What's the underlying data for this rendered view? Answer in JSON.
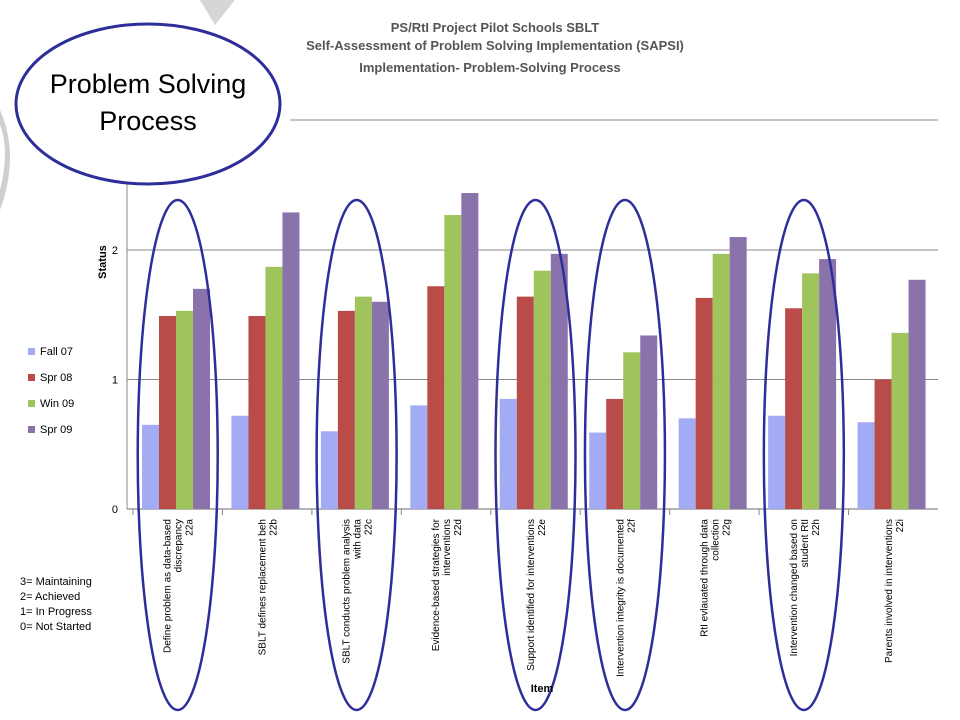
{
  "chart_data": {
    "type": "bar",
    "title_lines": [
      "PS/RtI Project Pilot Schools SBLT",
      "Self-Assessment of Problem Solving Implementation (SAPSI)",
      "Implementation-  Problem-Solving Process"
    ],
    "ylabel": "Status",
    "xlabel": "Item",
    "ylim": [
      0,
      3
    ],
    "yticks": [
      0,
      1,
      2
    ],
    "grid": true,
    "legend_position": "left",
    "categories": [
      [
        "Define problem as data-based",
        "discrepancy",
        "22a"
      ],
      [
        "SBLT defines replacement beh",
        "22b"
      ],
      [
        "SBLT conducts problem analysis",
        "with data",
        "22c"
      ],
      [
        "Evidence-based strategies for",
        "interventions",
        "22d"
      ],
      [
        "Support identified for interventions",
        "22e"
      ],
      [
        "Intervention integrity is documented",
        "22f"
      ],
      [
        "RtI evlauated through data",
        "collection",
        "22g"
      ],
      [
        "Intervention changed based on",
        "student RtI",
        "22h"
      ],
      [
        "Parents involved in interventions",
        "22i"
      ]
    ],
    "series": [
      {
        "name": "Fall 07",
        "color": "#a3abf4",
        "values": [
          0.65,
          0.72,
          0.6,
          0.8,
          0.85,
          0.59,
          0.7,
          0.72,
          0.67
        ]
      },
      {
        "name": "Spr 08",
        "color": "#b94b48",
        "values": [
          1.49,
          1.49,
          1.53,
          1.72,
          1.64,
          0.85,
          1.63,
          1.55,
          1.0
        ]
      },
      {
        "name": "Win 09",
        "color": "#a0c45c",
        "values": [
          1.53,
          1.87,
          1.64,
          2.27,
          1.84,
          1.21,
          1.97,
          1.82,
          1.36
        ]
      },
      {
        "name": "Spr 09",
        "color": "#8a72aa",
        "values": [
          1.7,
          2.29,
          1.6,
          2.44,
          1.97,
          1.34,
          2.1,
          1.93,
          1.77
        ]
      }
    ],
    "highlighted_categories": [
      0,
      2,
      4,
      5,
      7
    ]
  },
  "callout": {
    "lines": [
      "Problem Solving",
      "Process"
    ]
  },
  "status_key": [
    "3= Maintaining",
    "2= Achieved",
    "1= In Progress",
    "0= Not Started"
  ],
  "colors": {
    "highlight_ellipse": "#2e2e9a",
    "grid": "#888888"
  }
}
